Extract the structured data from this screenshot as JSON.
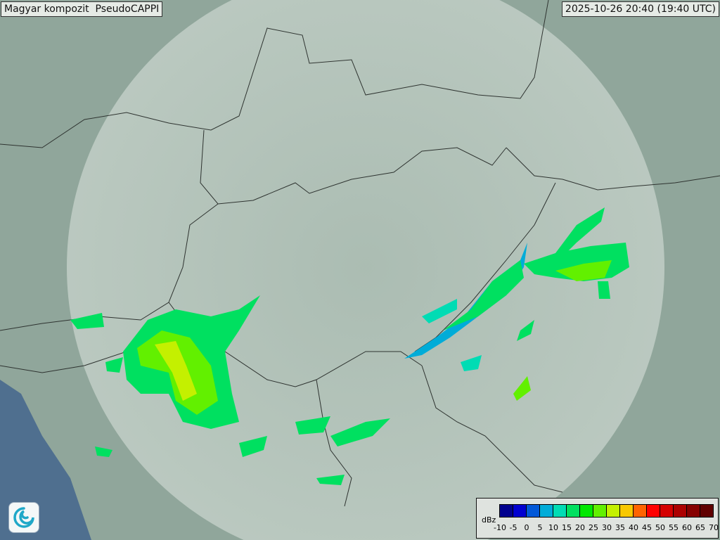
{
  "header": {
    "title": "Magyar kompozit  PseudoCAPPI",
    "timestamp": "2025-10-26 20:40 (19:40 UTC)"
  },
  "legend": {
    "unit": "dBz",
    "ticks": [
      "-10",
      "-5",
      "0",
      "5",
      "10",
      "15",
      "20",
      "25",
      "30",
      "35",
      "40",
      "45",
      "50",
      "55",
      "60",
      "65",
      "70"
    ],
    "colors": [
      "#00008e",
      "#0000d0",
      "#0058d8",
      "#00acd8",
      "#00dcb4",
      "#00e060",
      "#00e800",
      "#62f000",
      "#c4f000",
      "#f8c800",
      "#ff6400",
      "#ff0000",
      "#d40000",
      "#ac0000",
      "#860000",
      "#600000"
    ]
  },
  "map": {
    "terrain_color": "#8fa59a",
    "radar_coverage_color": "#c8d4cc",
    "border_color": "#333333",
    "logo_icon": "omsz-swirl-logo-icon"
  }
}
